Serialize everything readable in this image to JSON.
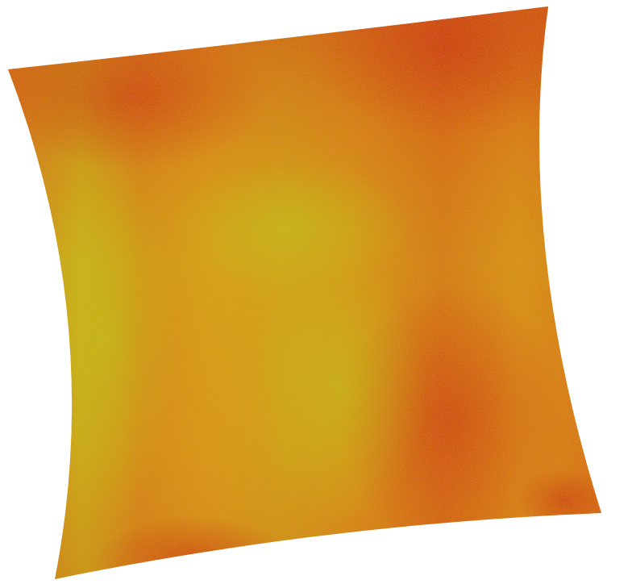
{
  "background_color": "#ffffff",
  "raster_image": {
    "description_free": true,
    "palette": {
      "red": "#c8321a",
      "dark_orange": "#d2561c",
      "orange": "#db7a1f",
      "amber": "#d79a1e",
      "yellow": "#c9b61f",
      "lime": "#b8c21f"
    }
  }
}
